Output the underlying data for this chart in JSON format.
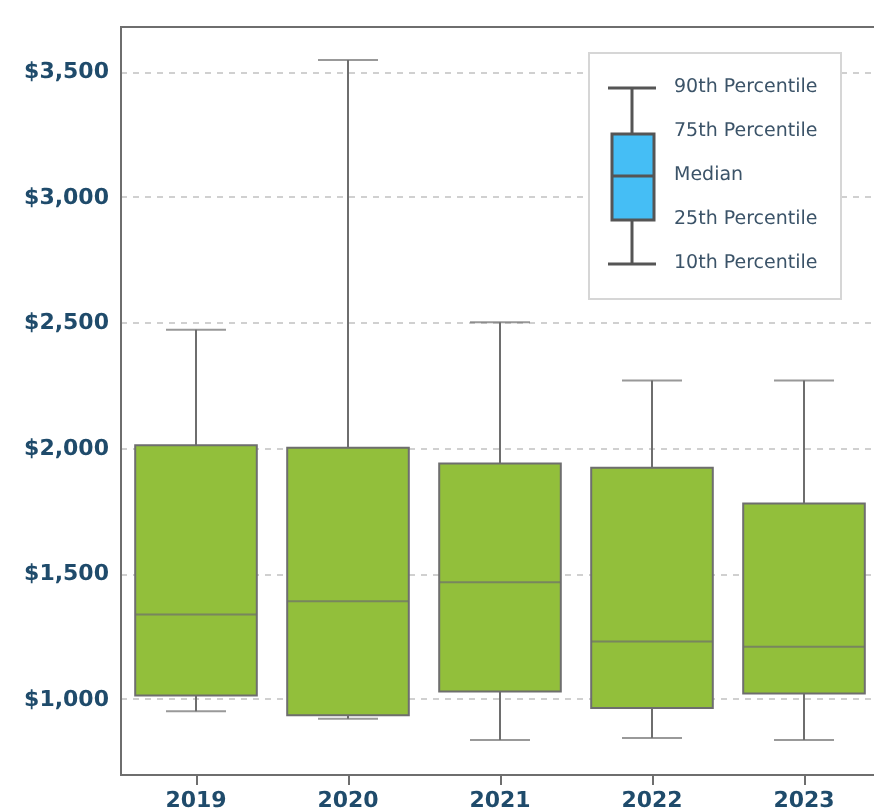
{
  "chart_data": {
    "type": "box",
    "categories": [
      "2019",
      "2020",
      "2021",
      "2022",
      "2023"
    ],
    "boxes": [
      {
        "low": 950,
        "q1": 1013,
        "median": 1335,
        "q3": 2010,
        "high": 2470
      },
      {
        "low": 920,
        "q1": 934,
        "median": 1388,
        "q3": 2000,
        "high": 3545
      },
      {
        "low": 835,
        "q1": 1029,
        "median": 1464,
        "q3": 1937,
        "high": 2500
      },
      {
        "low": 843,
        "q1": 963,
        "median": 1228,
        "q3": 1920,
        "high": 2268
      },
      {
        "low": 835,
        "q1": 1021,
        "median": 1207,
        "q3": 1778,
        "high": 2268
      }
    ],
    "color": "#92bf3b",
    "ylim": [
      700,
      3680
    ],
    "yticks": [
      {
        "value": 1000,
        "label": "$1,000"
      },
      {
        "value": 1500,
        "label": "$1,500"
      },
      {
        "value": 2000,
        "label": "$2,000"
      },
      {
        "value": 2500,
        "label": "$2,500"
      },
      {
        "value": 3000,
        "label": "$3,000"
      },
      {
        "value": 3500,
        "label": "$3,500"
      }
    ],
    "grid": "y",
    "annotations": [
      "90th Percentile",
      "75th Percentile",
      "Median",
      "25th Percentile",
      "10th Percentile"
    ]
  }
}
